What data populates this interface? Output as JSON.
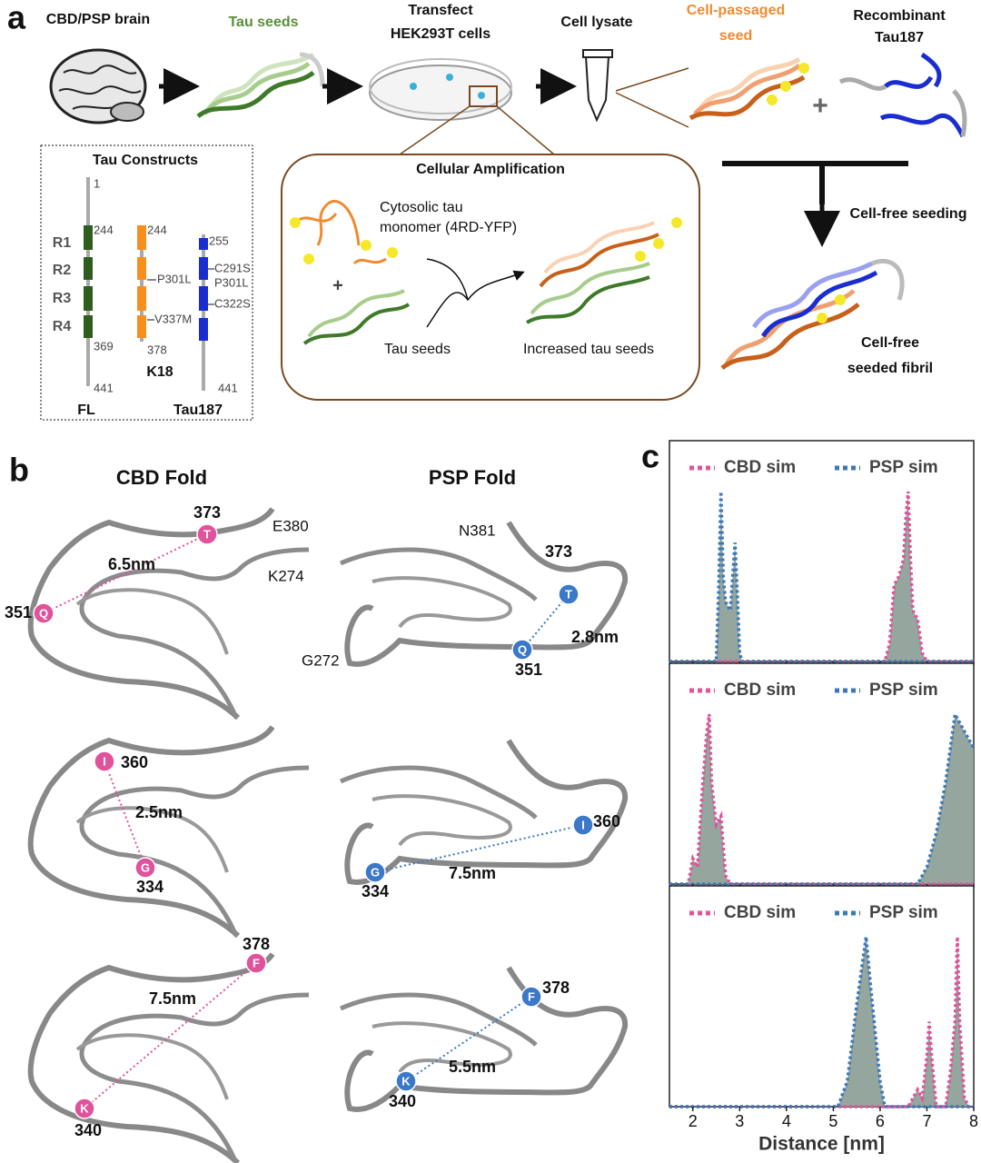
{
  "panel_a": {
    "label": "a",
    "steps": {
      "brain": "CBD/PSP brain",
      "seeds": "Tau seeds",
      "transfect": [
        "Transfect",
        "HEK293T cells"
      ],
      "lysate": "Cell lysate",
      "passaged": [
        "Cell-passaged",
        "seed"
      ],
      "recombinant": [
        "Recombinant",
        "Tau187"
      ],
      "plus": "+",
      "seeding": "Cell-free seeding",
      "fibril": [
        "Cell-free",
        "seeded fibril"
      ]
    },
    "amplification": {
      "title": "Cellular Amplification",
      "monomer": [
        "Cytosolic tau",
        "monomer (4RD-YFP)"
      ],
      "plus": "+",
      "seeds": "Tau seeds",
      "increased": "Increased tau seeds"
    },
    "constructs": {
      "title": "Tau Constructs",
      "repeats": [
        "R1",
        "R2",
        "R3",
        "R4"
      ],
      "fl": {
        "name": "FL",
        "residues": [
          "1",
          "244",
          "369",
          "441"
        ]
      },
      "k18": {
        "name": "K18",
        "residues": [
          "244",
          "378"
        ],
        "mutations": [
          "P301L",
          "V337M"
        ]
      },
      "tau187": {
        "name": "Tau187",
        "residues": [
          "255",
          "441"
        ],
        "mutations": [
          "C291S",
          "P301L",
          "C322S"
        ]
      }
    }
  },
  "panel_b": {
    "label": "b",
    "folds": [
      {
        "title": "CBD Fold",
        "annotations": [
          "E380",
          "K274"
        ],
        "pairs": [
          {
            "a": {
              "res": "Q",
              "num": "351"
            },
            "b": {
              "res": "T",
              "num": "373"
            },
            "distance": "6.5nm"
          },
          {
            "a": {
              "res": "I",
              "num": "360"
            },
            "b": {
              "res": "G",
              "num": "334"
            },
            "distance": "2.5nm"
          },
          {
            "a": {
              "res": "F",
              "num": "378"
            },
            "b": {
              "res": "K",
              "num": "340"
            },
            "distance": "7.5nm"
          }
        ]
      },
      {
        "title": "PSP Fold",
        "annotations": [
          "N381",
          "G272"
        ],
        "pairs": [
          {
            "a": {
              "res": "T",
              "num": "373"
            },
            "b": {
              "res": "Q",
              "num": "351"
            },
            "distance": "2.8nm"
          },
          {
            "a": {
              "res": "I",
              "num": "360"
            },
            "b": {
              "res": "G",
              "num": "334"
            },
            "distance": "7.5nm"
          },
          {
            "a": {
              "res": "F",
              "num": "378"
            },
            "b": {
              "res": "K",
              "num": "340"
            },
            "distance": "5.5nm"
          }
        ]
      }
    ]
  },
  "panel_c": {
    "label": "c"
  },
  "chart_data": [
    {
      "type": "area",
      "x": [
        1.5,
        2.5,
        2.55,
        2.6,
        2.65,
        2.7,
        2.8,
        2.85,
        2.9,
        2.95,
        3.0,
        3.05,
        6.1,
        6.2,
        6.3,
        6.4,
        6.5,
        6.55,
        6.6,
        6.65,
        6.7,
        6.8,
        6.9,
        7.0,
        8.0
      ],
      "series": [
        {
          "name": "CBD sim",
          "color": "#e0529c",
          "values": [
            0,
            0,
            0,
            0,
            0,
            0,
            0,
            0,
            0,
            0,
            0,
            0,
            0,
            0.1,
            0.45,
            0.5,
            0.6,
            0.85,
            1.0,
            0.6,
            0.3,
            0.25,
            0.05,
            0,
            0
          ]
        },
        {
          "name": "PSP sim",
          "color": "#3b78b8",
          "values": [
            0,
            0,
            0.4,
            1.0,
            0.5,
            0.35,
            0.3,
            0.5,
            0.7,
            0.4,
            0.05,
            0,
            0,
            0,
            0,
            0,
            0,
            0,
            0,
            0,
            0,
            0,
            0,
            0,
            0
          ]
        }
      ],
      "fill": "#8a9c93",
      "xlim": [
        1.5,
        8
      ],
      "ylim": [
        0,
        1.3
      ],
      "xticks": [
        2,
        3,
        4,
        5,
        6,
        7,
        8
      ]
    },
    {
      "type": "area",
      "x": [
        1.5,
        1.9,
        2.0,
        2.1,
        2.2,
        2.3,
        2.35,
        2.4,
        2.5,
        2.6,
        2.7,
        2.8,
        6.8,
        7.0,
        7.2,
        7.4,
        7.5,
        7.6,
        7.7,
        7.8,
        7.9,
        8.0
      ],
      "series": [
        {
          "name": "CBD sim",
          "color": "#e0529c",
          "values": [
            0,
            0,
            0.15,
            0.1,
            0.55,
            0.9,
            1.0,
            0.6,
            0.35,
            0.4,
            0.05,
            0,
            0,
            0,
            0,
            0,
            0,
            0,
            0,
            0,
            0,
            0
          ]
        },
        {
          "name": "PSP sim",
          "color": "#3b78b8",
          "values": [
            0,
            0,
            0,
            0,
            0,
            0,
            0,
            0,
            0,
            0,
            0,
            0,
            0,
            0.1,
            0.3,
            0.6,
            0.8,
            1.0,
            0.95,
            0.9,
            0.85,
            0.8
          ]
        }
      ],
      "fill": "#8a9c93",
      "xlim": [
        1.5,
        8
      ],
      "ylim": [
        0,
        1.3
      ],
      "xticks": [
        2,
        3,
        4,
        5,
        6,
        7,
        8
      ]
    },
    {
      "type": "area",
      "x": [
        1.5,
        5.1,
        5.3,
        5.5,
        5.6,
        5.7,
        5.8,
        6.0,
        6.1,
        6.6,
        6.7,
        6.8,
        6.9,
        7.0,
        7.05,
        7.1,
        7.2,
        7.4,
        7.5,
        7.6,
        7.65,
        7.7,
        7.8,
        7.9,
        8.0
      ],
      "series": [
        {
          "name": "CBD sim",
          "color": "#e0529c",
          "values": [
            0,
            0,
            0,
            0,
            0,
            0,
            0,
            0,
            0,
            0,
            0.05,
            0.1,
            0.05,
            0.3,
            0.5,
            0.3,
            0,
            0,
            0.2,
            0.5,
            1.0,
            0.5,
            0.05,
            0,
            0
          ]
        },
        {
          "name": "PSP sim",
          "color": "#3b78b8",
          "values": [
            0,
            0,
            0.15,
            0.6,
            0.8,
            1.0,
            0.7,
            0.15,
            0,
            0,
            0,
            0,
            0,
            0,
            0,
            0,
            0,
            0,
            0,
            0,
            0,
            0,
            0,
            0,
            0
          ]
        }
      ],
      "fill": "#8a9c93",
      "xlim": [
        1.5,
        8
      ],
      "ylim": [
        0,
        1.3
      ],
      "xticks": [
        2,
        3,
        4,
        5,
        6,
        7,
        8
      ],
      "xlabel": "Distance [nm]"
    }
  ]
}
